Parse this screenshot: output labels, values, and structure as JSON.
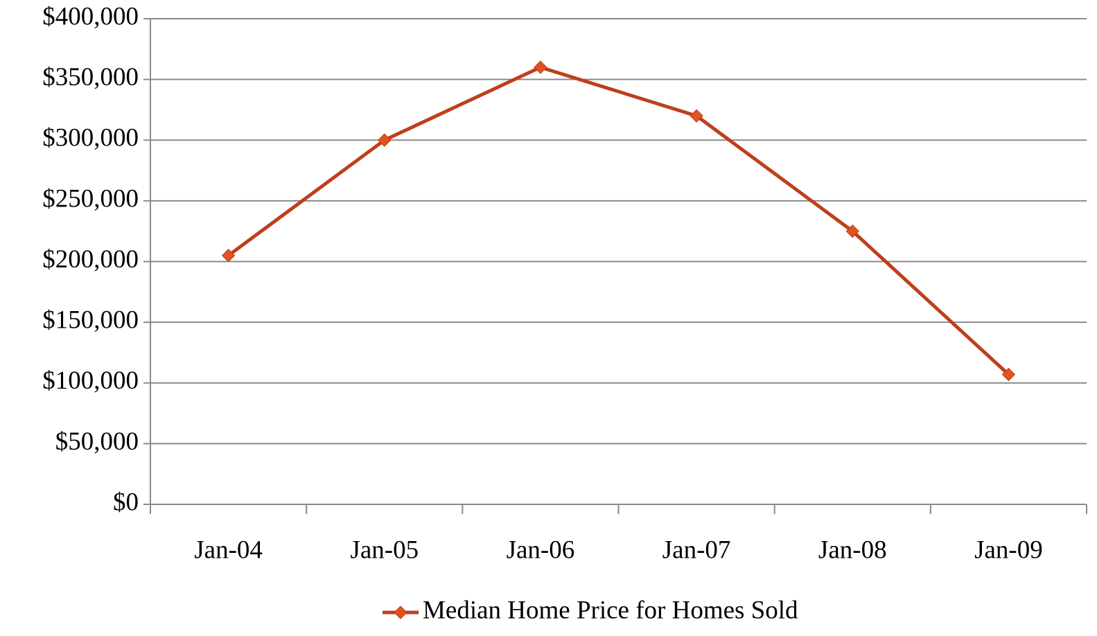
{
  "chart_data": {
    "type": "line",
    "categories": [
      "Jan-04",
      "Jan-05",
      "Jan-06",
      "Jan-07",
      "Jan-08",
      "Jan-09"
    ],
    "series": [
      {
        "name": "Median Home Price for Homes Sold",
        "color": "#be3f1c",
        "marker_color": "#e2531f",
        "values": [
          205000,
          300000,
          360000,
          320000,
          225000,
          107000
        ]
      }
    ],
    "ylim": [
      0,
      400000
    ],
    "yticks": [
      {
        "value": 0,
        "label": "$0"
      },
      {
        "value": 50000,
        "label": "$50,000"
      },
      {
        "value": 100000,
        "label": "$100,000"
      },
      {
        "value": 150000,
        "label": "$150,000"
      },
      {
        "value": 200000,
        "label": "$200,000"
      },
      {
        "value": 250000,
        "label": "$250,000"
      },
      {
        "value": 300000,
        "label": "$300,000"
      },
      {
        "value": 350000,
        "label": "$350,000"
      },
      {
        "value": 400000,
        "label": "$400,000"
      }
    ],
    "grid": true,
    "legend": "bottom"
  }
}
